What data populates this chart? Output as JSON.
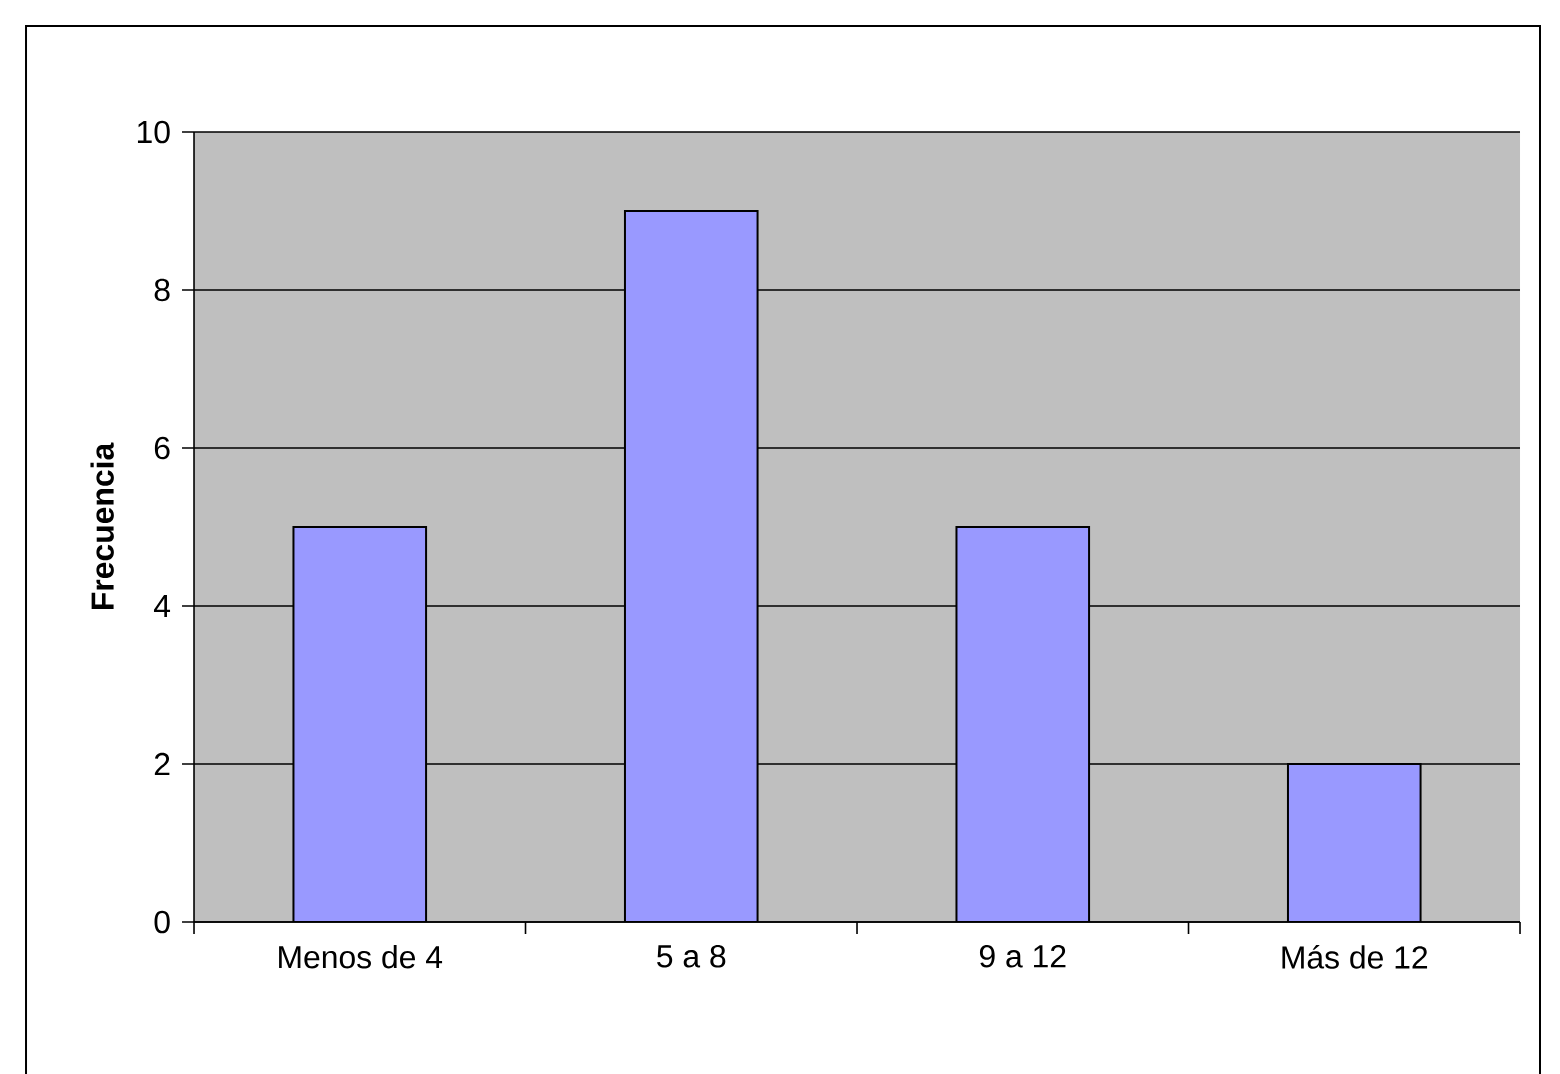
{
  "chart_data": {
    "type": "bar",
    "ylabel": "Frecuencia",
    "categories": [
      "Menos de 4",
      "5 a 8",
      "9 a 12",
      "Más de 12"
    ],
    "values": [
      5,
      9,
      5,
      2
    ],
    "color": "#9999ff",
    "ylim": [
      0,
      10
    ],
    "yticks": [
      0,
      2,
      4,
      6,
      8,
      10
    ],
    "grid": "y"
  }
}
